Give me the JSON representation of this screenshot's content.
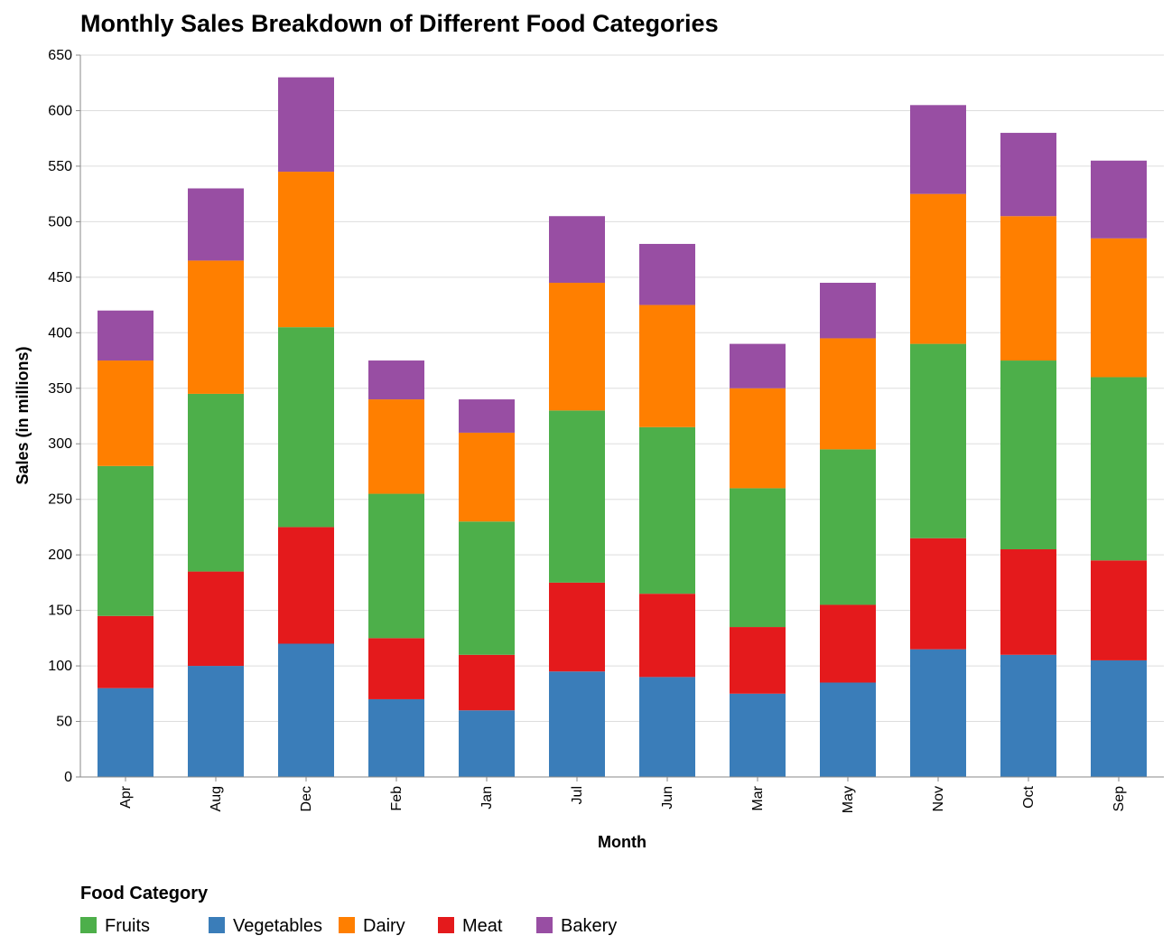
{
  "chart_data": {
    "type": "bar",
    "stacked": true,
    "title": "Monthly Sales Breakdown of Different Food Categories",
    "xlabel": "Month",
    "ylabel": "Sales (in millions)",
    "ylim": [
      0,
      650
    ],
    "yticks": [
      0,
      50,
      100,
      150,
      200,
      250,
      300,
      350,
      400,
      450,
      500,
      550,
      600,
      650
    ],
    "grid": true,
    "legend_title": "Food Category",
    "legend_position": "bottom-left",
    "categories": [
      "Apr",
      "Aug",
      "Dec",
      "Feb",
      "Jan",
      "Jul",
      "Jun",
      "Mar",
      "May",
      "Nov",
      "Oct",
      "Sep"
    ],
    "legend_order": [
      "Fruits",
      "Vegetables",
      "Dairy",
      "Meat",
      "Bakery"
    ],
    "series": [
      {
        "name": "Vegetables",
        "color": "#3a7db9",
        "values": [
          80,
          100,
          120,
          70,
          60,
          95,
          90,
          75,
          85,
          115,
          110,
          105
        ]
      },
      {
        "name": "Meat",
        "color": "#e41a1c",
        "values": [
          65,
          85,
          105,
          55,
          50,
          80,
          75,
          60,
          70,
          100,
          95,
          90
        ]
      },
      {
        "name": "Fruits",
        "color": "#4daf4a",
        "values": [
          135,
          160,
          180,
          130,
          120,
          155,
          150,
          125,
          140,
          175,
          170,
          165
        ]
      },
      {
        "name": "Dairy",
        "color": "#ff7f00",
        "values": [
          95,
          120,
          140,
          85,
          80,
          115,
          110,
          90,
          100,
          135,
          130,
          125
        ]
      },
      {
        "name": "Bakery",
        "color": "#984ea3",
        "values": [
          45,
          65,
          85,
          35,
          30,
          60,
          55,
          40,
          50,
          80,
          75,
          70
        ]
      }
    ]
  }
}
